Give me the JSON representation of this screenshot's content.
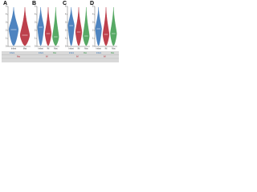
{
  "chart_data": [
    {
      "type": "violin",
      "label": "A",
      "categories": [
        "Infant",
        "Mat"
      ],
      "ylim": [
        0,
        5
      ],
      "yticks": [
        0,
        1,
        2,
        3,
        4,
        5
      ],
      "series": [
        {
          "name": "Infant",
          "color": "#2f6fb5",
          "values": [
            2.1,
            null
          ]
        },
        {
          "name": "Mat",
          "color": "#b21f2d",
          "values": [
            null,
            1.4
          ]
        }
      ]
    },
    {
      "type": "violin",
      "label": "B",
      "categories": [
        "Infant",
        "IM",
        "Mat"
      ],
      "ylim": [
        0,
        5
      ],
      "yticks": [
        0,
        1,
        2,
        3,
        4,
        5
      ],
      "series": [
        {
          "name": "Infant",
          "color": "#2f6fb5",
          "values": [
            2.4,
            null,
            null
          ]
        },
        {
          "name": "IM",
          "color": "#b21f2d",
          "values": [
            null,
            1.6,
            null
          ]
        },
        {
          "name": "Mat",
          "color": "#3a9a4a",
          "values": [
            null,
            null,
            1.2
          ]
        }
      ]
    },
    {
      "type": "violin",
      "label": "C",
      "categories": [
        "Infant",
        "IM",
        "Mat"
      ],
      "ylim": [
        0,
        5
      ],
      "yticks": [
        0,
        1,
        2,
        3,
        4,
        5
      ],
      "series": [
        {
          "name": "Infant",
          "color": "#2f6fb5",
          "values": [
            2.6,
            null,
            null
          ]
        },
        {
          "name": "IM",
          "color": "#b21f2d",
          "values": [
            null,
            1.8,
            null
          ]
        },
        {
          "name": "Mat",
          "color": "#3a9a4a",
          "values": [
            null,
            null,
            1.3
          ]
        }
      ]
    },
    {
      "type": "violin",
      "label": "D",
      "categories": [
        "Infant",
        "IM",
        "Mat"
      ],
      "ylim": [
        0,
        5
      ],
      "yticks": [
        0,
        1,
        2,
        3,
        4,
        5
      ],
      "series": [
        {
          "name": "Infant",
          "color": "#2f6fb5",
          "values": [
            2.2,
            null,
            null
          ]
        },
        {
          "name": "IM",
          "color": "#b21f2d",
          "values": [
            null,
            1.5,
            null
          ]
        },
        {
          "name": "Mat",
          "color": "#3a9a4a",
          "values": [
            null,
            null,
            1.6
          ]
        }
      ]
    }
  ]
}
